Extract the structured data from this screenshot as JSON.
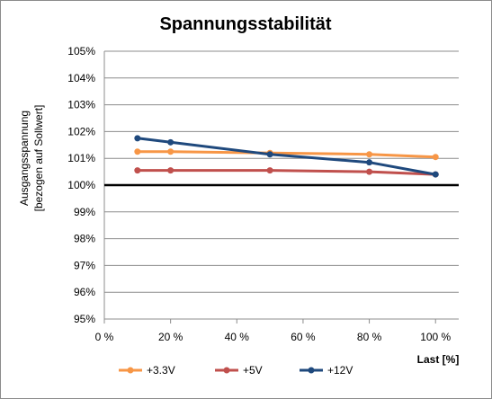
{
  "chart_data": {
    "type": "line",
    "title": "Spannungsstabilität",
    "xlabel": "Last [%]",
    "ylabel_lines": [
      "Ausgangsspannung",
      "[bezogen auf Sollwert]"
    ],
    "x_ticks": [
      "0 %",
      "20 %",
      "40 %",
      "60 %",
      "80 %",
      "100 %"
    ],
    "y_ticks": [
      "95%",
      "96%",
      "97%",
      "98%",
      "99%",
      "100%",
      "101%",
      "102%",
      "103%",
      "104%",
      "105%"
    ],
    "xlim": [
      0,
      107
    ],
    "ylim": [
      95,
      105
    ],
    "reference_line": 100,
    "grid": "horizontal",
    "legend": "bottom",
    "series": [
      {
        "name": "+3.3V",
        "color": "#f79646",
        "x": [
          10,
          20,
          50,
          80,
          100
        ],
        "y": [
          101.25,
          101.25,
          101.2,
          101.15,
          101.05
        ]
      },
      {
        "name": "+5V",
        "color": "#c0504d",
        "x": [
          10,
          20,
          50,
          80,
          100
        ],
        "y": [
          100.55,
          100.55,
          100.55,
          100.5,
          100.4
        ]
      },
      {
        "name": "+12V",
        "color": "#1f497d",
        "x": [
          10,
          20,
          50,
          80,
          100
        ],
        "y": [
          101.75,
          101.6,
          101.15,
          100.85,
          100.4
        ]
      }
    ]
  }
}
